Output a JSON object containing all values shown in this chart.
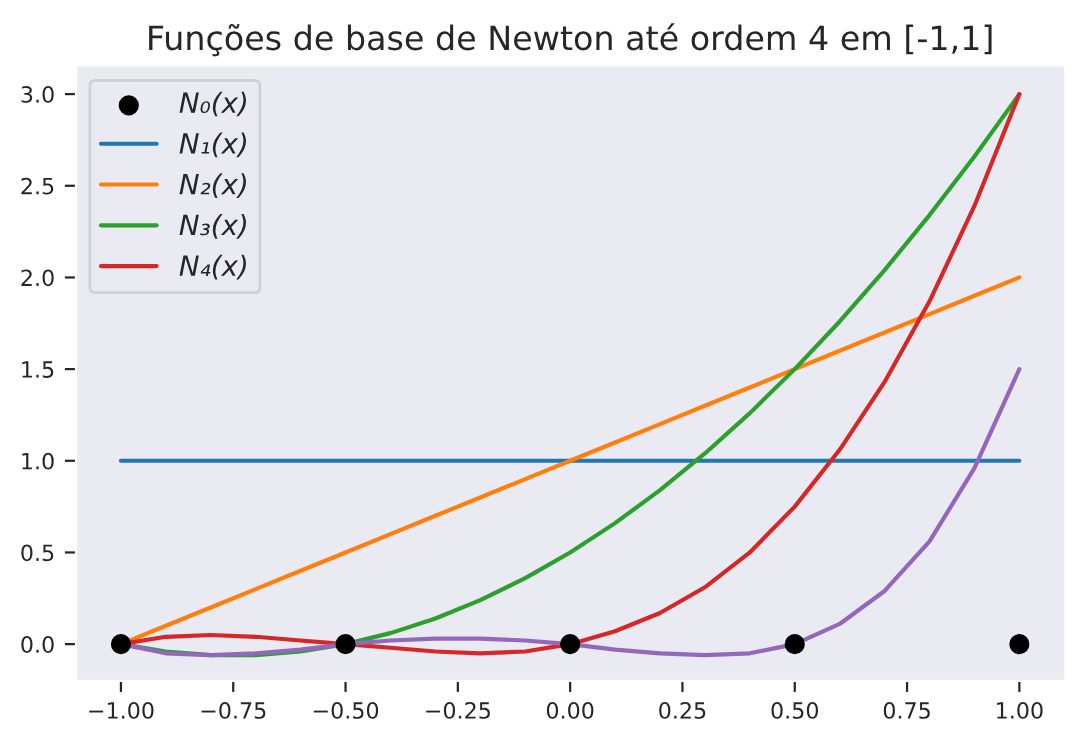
{
  "chart_data": {
    "type": "line",
    "title": "Funções de base de Newton até ordem 4 em [-1,1]",
    "x": [
      -1,
      -0.9,
      -0.8,
      -0.7,
      -0.6,
      -0.5,
      -0.4,
      -0.3,
      -0.2,
      -0.1,
      0,
      0.1,
      0.2,
      0.3,
      0.4,
      0.5,
      0.6,
      0.7,
      0.8,
      0.9,
      1
    ],
    "series": [
      {
        "name": "N₀(x)",
        "type": "scatter",
        "marker": "circle",
        "color": "#000000",
        "x": [
          -1,
          -0.5,
          0,
          0.5,
          1
        ],
        "values": [
          0,
          0,
          0,
          0,
          0
        ]
      },
      {
        "name": "N₁(x)",
        "color": "#1f77b4",
        "values": [
          1,
          1,
          1,
          1,
          1,
          1,
          1,
          1,
          1,
          1,
          1,
          1,
          1,
          1,
          1,
          1,
          1,
          1,
          1,
          1,
          1
        ]
      },
      {
        "name": "N₂(x)",
        "color": "#ff7f0e",
        "values": [
          0,
          0.1,
          0.2,
          0.3,
          0.4,
          0.5,
          0.6,
          0.7,
          0.8,
          0.9,
          1,
          1.1,
          1.2,
          1.3,
          1.4,
          1.5,
          1.6,
          1.7,
          1.8,
          1.9,
          2
        ]
      },
      {
        "name": "N₃(x)",
        "color": "#2ca02c",
        "values": [
          0,
          -0.04,
          -0.06,
          -0.06,
          -0.04,
          0,
          0.06,
          0.14,
          0.24,
          0.36,
          0.5,
          0.66,
          0.84,
          1.04,
          1.26,
          1.5,
          1.76,
          2.04,
          2.34,
          2.66,
          3
        ]
      },
      {
        "name": "N₄(x)",
        "color": "#d62728",
        "values": [
          0,
          0.04,
          0.05,
          0.04,
          0.02,
          0,
          -0.02,
          -0.04,
          -0.05,
          -0.04,
          0,
          0.07,
          0.17,
          0.31,
          0.5,
          0.75,
          1.06,
          1.43,
          1.87,
          2.39,
          3
        ]
      },
      {
        "color": "#9467bd",
        "values": [
          0,
          -0.05,
          -0.06,
          -0.05,
          -0.03,
          0,
          0.02,
          0.03,
          0.03,
          0.02,
          0,
          -0.03,
          -0.05,
          -0.06,
          -0.05,
          0,
          0.11,
          0.29,
          0.56,
          0.96,
          1.5
        ]
      }
    ],
    "xlim": [
      -1.1,
      1.1
    ],
    "ylim": [
      -0.2,
      3.15
    ],
    "xticks": [
      {
        "value": -1,
        "label": "−1.00"
      },
      {
        "value": -0.75,
        "label": "−0.75"
      },
      {
        "value": -0.5,
        "label": "−0.50"
      },
      {
        "value": -0.25,
        "label": "−0.25"
      },
      {
        "value": 0,
        "label": "0.00"
      },
      {
        "value": 0.25,
        "label": "0.25"
      },
      {
        "value": 0.5,
        "label": "0.50"
      },
      {
        "value": 0.75,
        "label": "0.75"
      },
      {
        "value": 1,
        "label": "1.00"
      }
    ],
    "yticks": [
      {
        "value": 0,
        "label": "0.0"
      },
      {
        "value": 0.5,
        "label": "0.5"
      },
      {
        "value": 1,
        "label": "1.0"
      },
      {
        "value": 1.5,
        "label": "1.5"
      },
      {
        "value": 2,
        "label": "2.0"
      },
      {
        "value": 2.5,
        "label": "2.5"
      },
      {
        "value": 3,
        "label": "3.0"
      }
    ],
    "grid": false,
    "legend": "top left"
  }
}
